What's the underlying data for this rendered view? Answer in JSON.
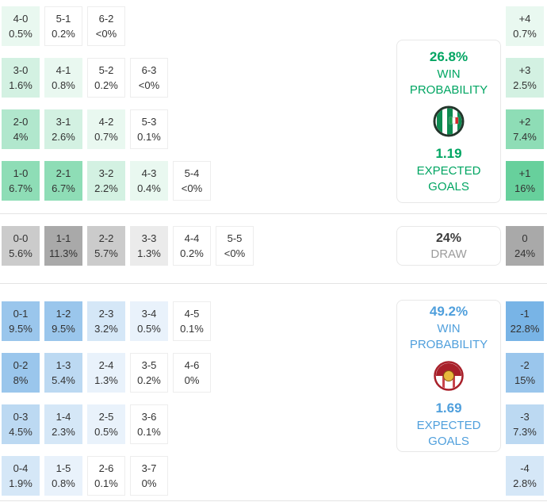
{
  "colors": {
    "home_accent": "#00a562",
    "away_accent": "#4f9fdc",
    "draw_value_text": "#3c3c3c",
    "draw_label_text": "#9b9b9b",
    "home_cell_strong": "#67d09c",
    "away_cell_strong": "#78b4e6",
    "draw_cell_strong": "#a9a9a9"
  },
  "chart_data": {
    "type": "heatmap",
    "home": {
      "panel": {
        "probability": "26.8%",
        "label_line1": "WIN",
        "label_line2": "PROBABILITY",
        "expected_goals": "1.19",
        "eg_line1": "EXPECTED",
        "eg_line2": "GOALS"
      },
      "rows": [
        [
          {
            "score": "4-0",
            "pct": "0.5%",
            "lvl": 1
          },
          {
            "score": "5-1",
            "pct": "0.2%",
            "lvl": 0
          },
          {
            "score": "6-2",
            "pct": "<0%",
            "lvl": 0
          }
        ],
        [
          {
            "score": "3-0",
            "pct": "1.6%",
            "lvl": 2
          },
          {
            "score": "4-1",
            "pct": "0.8%",
            "lvl": 1
          },
          {
            "score": "5-2",
            "pct": "0.2%",
            "lvl": 0
          },
          {
            "score": "6-3",
            "pct": "<0%",
            "lvl": 0
          }
        ],
        [
          {
            "score": "2-0",
            "pct": "4%",
            "lvl": 3
          },
          {
            "score": "3-1",
            "pct": "2.6%",
            "lvl": 2
          },
          {
            "score": "4-2",
            "pct": "0.7%",
            "lvl": 1
          },
          {
            "score": "5-3",
            "pct": "0.1%",
            "lvl": 0
          }
        ],
        [
          {
            "score": "1-0",
            "pct": "6.7%",
            "lvl": 4
          },
          {
            "score": "2-1",
            "pct": "6.7%",
            "lvl": 4
          },
          {
            "score": "3-2",
            "pct": "2.2%",
            "lvl": 2
          },
          {
            "score": "4-3",
            "pct": "0.4%",
            "lvl": 1
          },
          {
            "score": "5-4",
            "pct": "<0%",
            "lvl": 0
          }
        ]
      ],
      "diffs": [
        {
          "label": "+4",
          "pct": "0.7%",
          "lvl": 1
        },
        {
          "label": "+3",
          "pct": "2.5%",
          "lvl": 2
        },
        {
          "label": "+2",
          "pct": "7.4%",
          "lvl": 4
        },
        {
          "label": "+1",
          "pct": "16%",
          "lvl": 5
        }
      ]
    },
    "draw": {
      "panel": {
        "probability": "24%",
        "label": "DRAW"
      },
      "rows": [
        [
          {
            "score": "0-0",
            "pct": "5.6%",
            "lvl": 3
          },
          {
            "score": "1-1",
            "pct": "11.3%",
            "lvl": 5
          },
          {
            "score": "2-2",
            "pct": "5.7%",
            "lvl": 3
          },
          {
            "score": "3-3",
            "pct": "1.3%",
            "lvl": 1
          },
          {
            "score": "4-4",
            "pct": "0.2%",
            "lvl": 0
          },
          {
            "score": "5-5",
            "pct": "<0%",
            "lvl": 0
          }
        ]
      ],
      "diffs": [
        {
          "label": "0",
          "pct": "24%",
          "lvl": 5
        }
      ]
    },
    "away": {
      "panel": {
        "probability": "49.2%",
        "label_line1": "WIN",
        "label_line2": "PROBABILITY",
        "expected_goals": "1.69",
        "eg_line1": "EXPECTED",
        "eg_line2": "GOALS"
      },
      "rows": [
        [
          {
            "score": "0-1",
            "pct": "9.5%",
            "lvl": 4
          },
          {
            "score": "1-2",
            "pct": "9.5%",
            "lvl": 4
          },
          {
            "score": "2-3",
            "pct": "3.2%",
            "lvl": 2
          },
          {
            "score": "3-4",
            "pct": "0.5%",
            "lvl": 1
          },
          {
            "score": "4-5",
            "pct": "0.1%",
            "lvl": 0
          }
        ],
        [
          {
            "score": "0-2",
            "pct": "8%",
            "lvl": 4
          },
          {
            "score": "1-3",
            "pct": "5.4%",
            "lvl": 3
          },
          {
            "score": "2-4",
            "pct": "1.3%",
            "lvl": 1
          },
          {
            "score": "3-5",
            "pct": "0.2%",
            "lvl": 0
          },
          {
            "score": "4-6",
            "pct": "0%",
            "lvl": 0
          }
        ],
        [
          {
            "score": "0-3",
            "pct": "4.5%",
            "lvl": 3
          },
          {
            "score": "1-4",
            "pct": "2.3%",
            "lvl": 2
          },
          {
            "score": "2-5",
            "pct": "0.5%",
            "lvl": 1
          },
          {
            "score": "3-6",
            "pct": "0.1%",
            "lvl": 0
          }
        ],
        [
          {
            "score": "0-4",
            "pct": "1.9%",
            "lvl": 2
          },
          {
            "score": "1-5",
            "pct": "0.8%",
            "lvl": 1
          },
          {
            "score": "2-6",
            "pct": "0.1%",
            "lvl": 0
          },
          {
            "score": "3-7",
            "pct": "0%",
            "lvl": 0
          }
        ]
      ],
      "diffs": [
        {
          "label": "-1",
          "pct": "22.8%",
          "lvl": 5
        },
        {
          "label": "-2",
          "pct": "15%",
          "lvl": 4
        },
        {
          "label": "-3",
          "pct": "7.3%",
          "lvl": 3
        },
        {
          "label": "-4",
          "pct": "2.8%",
          "lvl": 2
        }
      ]
    }
  }
}
